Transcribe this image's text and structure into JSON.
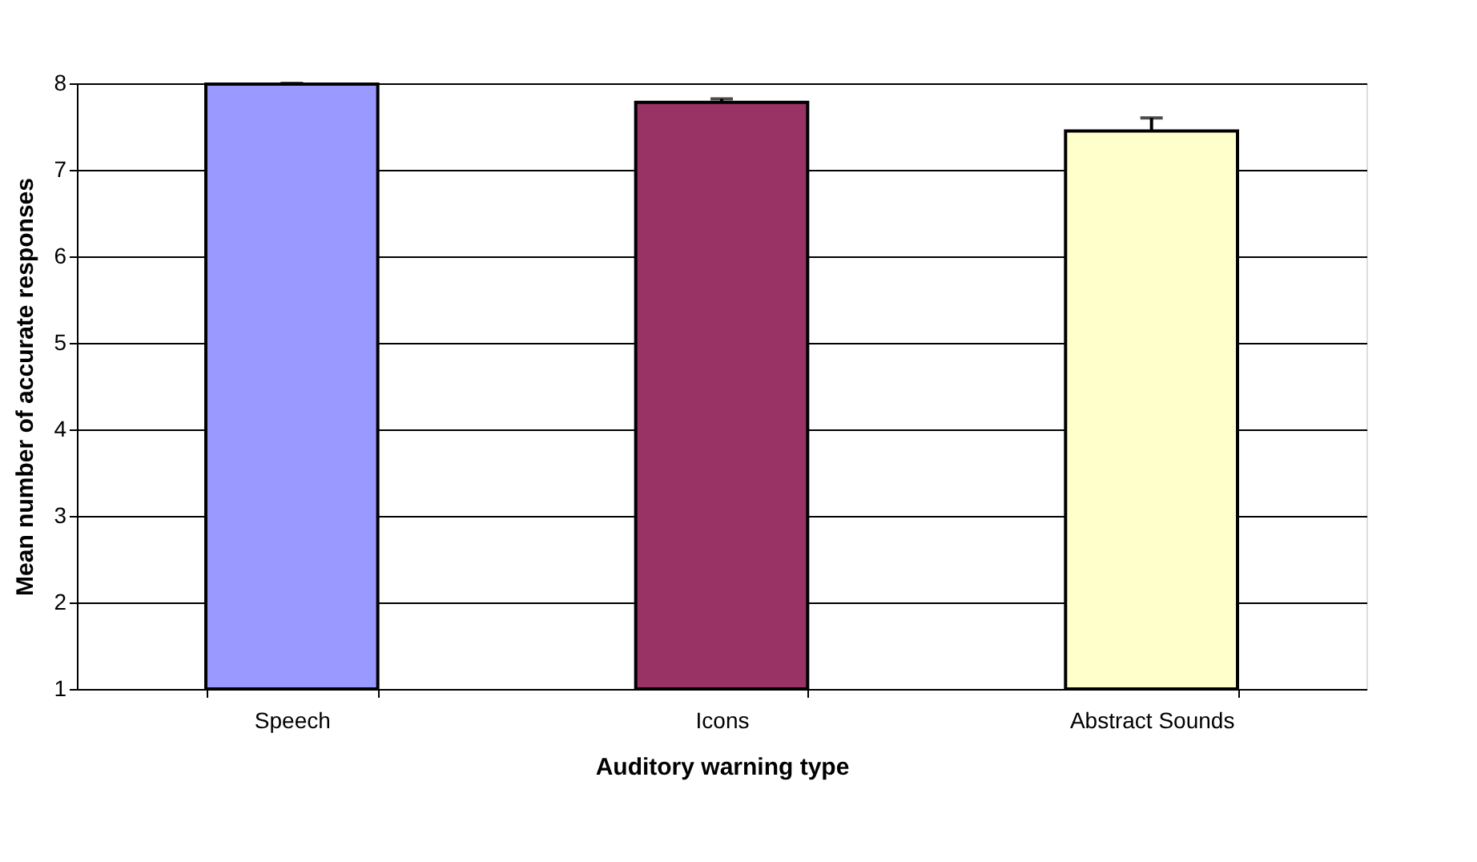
{
  "chart_data": {
    "type": "bar",
    "xlabel": "Auditory warning type",
    "ylabel": "Mean number of accurate responses",
    "categories": [
      "Speech",
      "Icons",
      "Abstract Sounds"
    ],
    "values": [
      7.99,
      7.78,
      7.45
    ],
    "colors": [
      "#9999ff",
      "#993366",
      "#ffffcc"
    ],
    "errors": [
      [
        7.99,
        8.0
      ],
      [
        7.78,
        7.82
      ],
      [
        7.45,
        7.6
      ]
    ],
    "ylim": [
      1,
      8
    ],
    "yticks": [
      1,
      2,
      3,
      4,
      5,
      6,
      7,
      8
    ],
    "grid": "y",
    "legend": false
  }
}
